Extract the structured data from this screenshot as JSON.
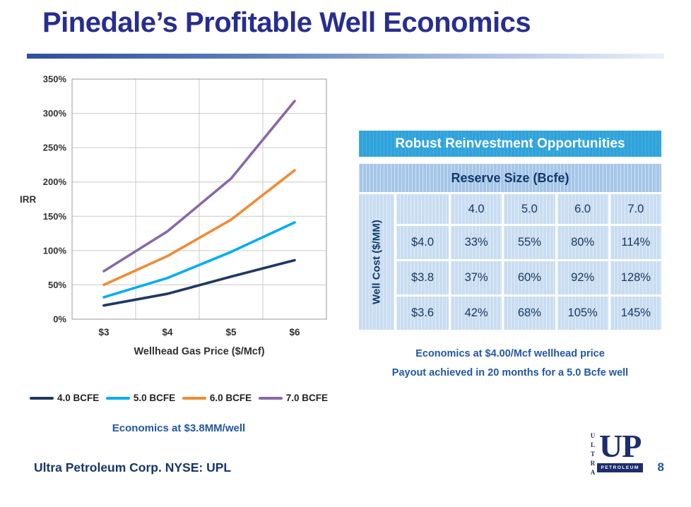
{
  "slide": {
    "title": "Pinedale’s Profitable Well Economics",
    "footer": {
      "left": "Ultra Petroleum Corp. NYSE: UPL",
      "page": "8"
    },
    "logo": {
      "vertical": "ULTRA",
      "main": "UP",
      "banner": "PETROLEUM"
    }
  },
  "chart_data": {
    "type": "line",
    "title": "",
    "x": [
      3,
      4,
      5,
      6
    ],
    "x_tick_labels": [
      "$3",
      "$4",
      "$5",
      "$6"
    ],
    "xlabel": "Wellhead Gas Price ($/Mcf)",
    "ylabel": "IRR",
    "ylim": [
      0,
      350
    ],
    "y_tick_step": 50,
    "y_tick_labels": [
      "0%",
      "50%",
      "100%",
      "150%",
      "200%",
      "250%",
      "300%",
      "350%"
    ],
    "grid": true,
    "legend_position": "bottom",
    "series": [
      {
        "name": "4.0 BCFE",
        "color": "#1F3864",
        "values": [
          20,
          37,
          62,
          86
        ]
      },
      {
        "name": "5.0 BCFE",
        "color": "#00AEEF",
        "values": [
          32,
          60,
          98,
          141
        ]
      },
      {
        "name": "6.0 BCFE",
        "color": "#F08B33",
        "values": [
          50,
          92,
          145,
          217
        ]
      },
      {
        "name": "7.0 BCFE",
        "color": "#8968A8",
        "values": [
          70,
          128,
          205,
          318
        ]
      }
    ],
    "caption": "Economics at $3.8MM/well"
  },
  "table": {
    "header": "Robust Reinvestment Opportunities",
    "col_group_header": "Reserve Size (Bcfe)",
    "row_group_header": "Well Cost ($/MM)",
    "columns": [
      "4.0",
      "5.0",
      "6.0",
      "7.0"
    ],
    "rows": [
      {
        "label": "$4.0",
        "values": [
          "33%",
          "55%",
          "80%",
          "114%"
        ]
      },
      {
        "label": "$3.8",
        "values": [
          "37%",
          "60%",
          "92%",
          "128%"
        ]
      },
      {
        "label": "$3.6",
        "values": [
          "42%",
          "68%",
          "105%",
          "145%"
        ]
      }
    ],
    "captions": [
      "Economics at $4.00/Mcf wellhead price",
      "Payout achieved in 20 months for a 5.0 Bcfe well"
    ]
  }
}
